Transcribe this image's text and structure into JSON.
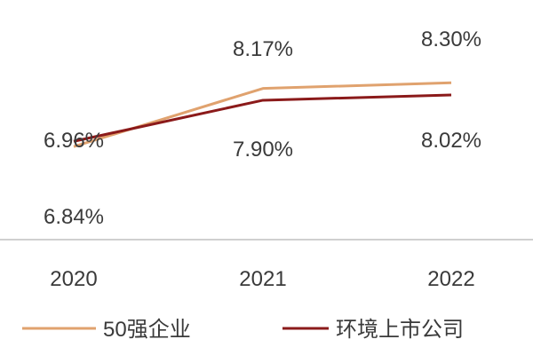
{
  "chart_data": {
    "type": "line",
    "x": [
      "2020",
      "2021",
      "2022"
    ],
    "series": [
      {
        "name": "50强企业",
        "values": [
          6.84,
          8.17,
          8.3
        ],
        "labels": [
          "6.84%",
          "8.17%",
          "8.30%"
        ],
        "color": "#e0a26e"
      },
      {
        "name": "环境上市公司",
        "values": [
          6.96,
          7.9,
          8.02
        ],
        "labels": [
          "6.96%",
          "7.90%",
          "8.02%"
        ],
        "color": "#8b1a1a"
      }
    ],
    "ylim": [
      6.0,
      9.0
    ],
    "grid": false,
    "legend": "bottom",
    "baseline_color": "#d0d0d0"
  }
}
